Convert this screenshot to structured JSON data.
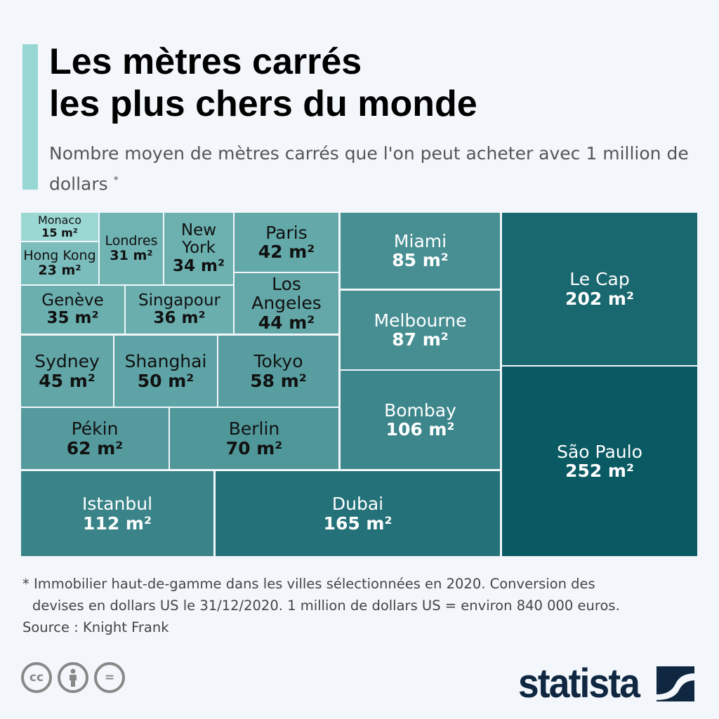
{
  "header": {
    "title_line1": "Les mètres carrés",
    "title_line2": "les plus chers du monde",
    "subtitle": "Nombre moyen de mètres carrés que l'on peut acheter avec 1 million de dollars",
    "subtitle_mark": "*"
  },
  "chart_data": {
    "type": "treemap",
    "unit": "m²",
    "categories": [
      "Monaco",
      "Hong Kong",
      "Londres",
      "New York",
      "Genève",
      "Singapour",
      "Paris",
      "Los Angeles",
      "Sydney",
      "Shanghai",
      "Tokyo",
      "Pékin",
      "Berlin",
      "Miami",
      "Melbourne",
      "Bombay",
      "Istanbul",
      "Dubai",
      "Le Cap",
      "São Paulo"
    ],
    "values": [
      15,
      23,
      31,
      34,
      35,
      36,
      42,
      44,
      45,
      50,
      58,
      62,
      70,
      85,
      87,
      106,
      112,
      165,
      202,
      252
    ],
    "labels": [
      "15 m²",
      "23 m²",
      "31 m²",
      "34 m²",
      "35 m²",
      "36 m²",
      "42 m²",
      "44 m²",
      "45 m²",
      "50 m²",
      "58 m²",
      "62 m²",
      "70 m²",
      "85 m²",
      "87 m²",
      "106 m²",
      "112 m²",
      "165 m²",
      "202 m²",
      "252 m²"
    ],
    "color_low": "#9bd8d4",
    "color_high": "#0a5a64"
  },
  "footer": {
    "note_line1": "* Immobilier haut-de-gamme dans les villes sélectionnées en 2020. Conversion des",
    "note_line2": "devises en dollars US le 31/12/2020. 1 million de dollars US = environ 840 000 euros.",
    "source": "Source : Knight Frank",
    "license_icons": [
      "cc-icon",
      "by-icon",
      "nd-icon"
    ],
    "logo": "statista"
  }
}
